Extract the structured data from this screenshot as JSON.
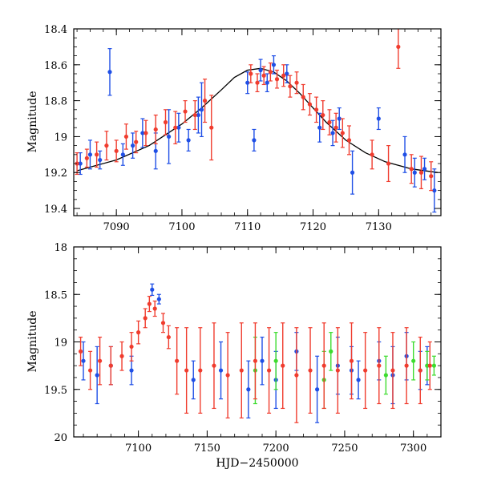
{
  "chart_data": [
    {
      "type": "scatter",
      "panel": "top",
      "xlabel": "",
      "ylabel": "Magnitude",
      "xlim": [
        7083.5,
        7139.5
      ],
      "ylim": [
        19.44,
        18.4
      ],
      "y_inverted": true,
      "xticks": [
        7090,
        7100,
        7110,
        7120,
        7130
      ],
      "yticks": [
        18.4,
        18.6,
        18.8,
        19,
        19.2,
        19.4
      ],
      "ytick_labels": [
        "18.4",
        "18.6",
        "18.8",
        "19",
        "19.2",
        "19.4"
      ],
      "model_curve": {
        "name": "model fit",
        "color": "#000000",
        "x": [
          7084,
          7090,
          7095,
          7100,
          7103,
          7106,
          7108,
          7110,
          7112,
          7114,
          7116,
          7118,
          7120,
          7122,
          7125,
          7128,
          7131,
          7135,
          7139
        ],
        "y": [
          19.19,
          19.13,
          19.05,
          18.93,
          18.84,
          18.74,
          18.67,
          18.63,
          18.62,
          18.64,
          18.69,
          18.76,
          18.84,
          18.92,
          19.02,
          19.09,
          19.14,
          19.18,
          19.2
        ]
      },
      "series": [
        {
          "name": "blue observations",
          "color": "#1f4fe6",
          "x": [
            7084.5,
            7086,
            7087.5,
            7089,
            7091,
            7092.5,
            7094,
            7096,
            7098,
            7099.5,
            7101,
            7102.5,
            7103,
            7110,
            7111,
            7112,
            7113,
            7114,
            7116,
            7121,
            7123,
            7124,
            7126,
            7130,
            7134,
            7135.5,
            7137,
            7138.5
          ],
          "y": [
            19.15,
            19.1,
            19.13,
            18.64,
            19.1,
            19.05,
            18.98,
            19.08,
            19.0,
            18.95,
            19.02,
            18.88,
            18.85,
            18.7,
            19.02,
            18.63,
            18.7,
            18.6,
            18.65,
            18.95,
            18.98,
            18.9,
            19.2,
            18.9,
            19.1,
            19.2,
            19.18,
            19.3
          ],
          "err": [
            0.06,
            0.08,
            0.05,
            0.13,
            0.06,
            0.07,
            0.08,
            0.1,
            0.15,
            0.08,
            0.06,
            0.1,
            0.15,
            0.06,
            0.06,
            0.06,
            0.05,
            0.05,
            0.05,
            0.08,
            0.07,
            0.06,
            0.12,
            0.06,
            0.1,
            0.08,
            0.06,
            0.12
          ]
        },
        {
          "name": "red observations",
          "color": "#f03c2e",
          "x": [
            7084,
            7085.5,
            7087,
            7088.5,
            7090,
            7091.5,
            7093,
            7094.5,
            7096,
            7097.5,
            7099,
            7100.5,
            7102,
            7103.5,
            7104.5,
            7110.5,
            7111.5,
            7112.5,
            7113.5,
            7114.5,
            7115.5,
            7116.5,
            7117.5,
            7118.5,
            7119.5,
            7120.5,
            7121.5,
            7122.5,
            7123.5,
            7124.5,
            7125.5,
            7129,
            7131.5,
            7133,
            7135,
            7136.5,
            7138
          ],
          "y": [
            19.15,
            19.12,
            19.1,
            19.05,
            19.08,
            19.0,
            19.03,
            18.98,
            18.96,
            18.92,
            18.95,
            18.86,
            18.88,
            18.8,
            18.95,
            18.65,
            18.7,
            18.66,
            18.64,
            18.68,
            18.66,
            18.72,
            18.7,
            18.78,
            18.82,
            18.85,
            18.88,
            18.92,
            18.95,
            18.98,
            19.02,
            19.1,
            19.15,
            18.5,
            19.18,
            19.2,
            19.22
          ],
          "err": [
            0.06,
            0.05,
            0.07,
            0.08,
            0.06,
            0.07,
            0.06,
            0.07,
            0.08,
            0.07,
            0.09,
            0.06,
            0.08,
            0.12,
            0.18,
            0.05,
            0.05,
            0.05,
            0.05,
            0.05,
            0.06,
            0.06,
            0.06,
            0.07,
            0.06,
            0.07,
            0.08,
            0.07,
            0.08,
            0.08,
            0.08,
            0.08,
            0.1,
            0.12,
            0.08,
            0.09,
            0.08
          ]
        }
      ]
    },
    {
      "type": "scatter",
      "panel": "bottom",
      "xlabel": "HJD−2450000",
      "ylabel": "Magnitude",
      "xlim": [
        7053,
        7320
      ],
      "ylim": [
        20,
        18
      ],
      "y_inverted": true,
      "xticks": [
        7100,
        7150,
        7200,
        7250,
        7300
      ],
      "yticks": [
        18,
        18.5,
        19,
        19.5,
        20
      ],
      "ytick_labels": [
        "18",
        "18.5",
        "19",
        "19.5",
        "20"
      ],
      "series": [
        {
          "name": "blue observations",
          "color": "#1f4fe6",
          "x": [
            7060,
            7070,
            7080,
            7095,
            7110,
            7115,
            7140,
            7160,
            7180,
            7190,
            7200,
            7215,
            7230,
            7245,
            7255,
            7260,
            7275,
            7285,
            7295,
            7305,
            7310
          ],
          "y": [
            19.2,
            19.35,
            19.25,
            19.3,
            18.45,
            18.55,
            19.4,
            19.3,
            19.5,
            19.2,
            19.4,
            19.1,
            19.5,
            19.25,
            19.3,
            19.4,
            19.2,
            19.35,
            19.15,
            19.3,
            19.25
          ],
          "err": [
            0.2,
            0.3,
            0.2,
            0.15,
            0.06,
            0.05,
            0.2,
            0.3,
            0.3,
            0.25,
            0.3,
            0.2,
            0.35,
            0.3,
            0.25,
            0.2,
            0.2,
            0.3,
            0.25,
            0.2,
            0.2
          ]
        },
        {
          "name": "green observations",
          "color": "#3ddc2e",
          "x": [
            7185,
            7200,
            7235,
            7240,
            7280,
            7300,
            7310,
            7315
          ],
          "y": [
            19.3,
            19.2,
            19.4,
            19.1,
            19.35,
            19.2,
            19.25,
            19.25
          ],
          "err": [
            0.35,
            0.3,
            0.3,
            0.2,
            0.2,
            0.2,
            0.15,
            0.1
          ]
        },
        {
          "name": "red observations",
          "color": "#f03c2e",
          "x": [
            7058,
            7065,
            7072,
            7080,
            7088,
            7095,
            7100,
            7105,
            7108,
            7112,
            7118,
            7122,
            7128,
            7135,
            7145,
            7155,
            7165,
            7175,
            7185,
            7195,
            7205,
            7215,
            7225,
            7235,
            7245,
            7255,
            7265,
            7275,
            7285,
            7295,
            7305,
            7312
          ],
          "y": [
            19.1,
            19.3,
            19.2,
            19.25,
            19.15,
            19.05,
            18.9,
            18.75,
            18.6,
            18.65,
            18.8,
            18.95,
            19.2,
            19.3,
            19.3,
            19.25,
            19.35,
            19.3,
            19.2,
            19.3,
            19.25,
            19.35,
            19.3,
            19.25,
            19.3,
            19.2,
            19.3,
            19.25,
            19.3,
            19.25,
            19.3,
            19.25
          ],
          "err": [
            0.15,
            0.2,
            0.25,
            0.2,
            0.15,
            0.15,
            0.12,
            0.1,
            0.08,
            0.08,
            0.1,
            0.12,
            0.35,
            0.45,
            0.45,
            0.45,
            0.45,
            0.5,
            0.4,
            0.45,
            0.45,
            0.5,
            0.45,
            0.45,
            0.45,
            0.4,
            0.4,
            0.4,
            0.4,
            0.4,
            0.35,
            0.25
          ]
        }
      ]
    }
  ]
}
